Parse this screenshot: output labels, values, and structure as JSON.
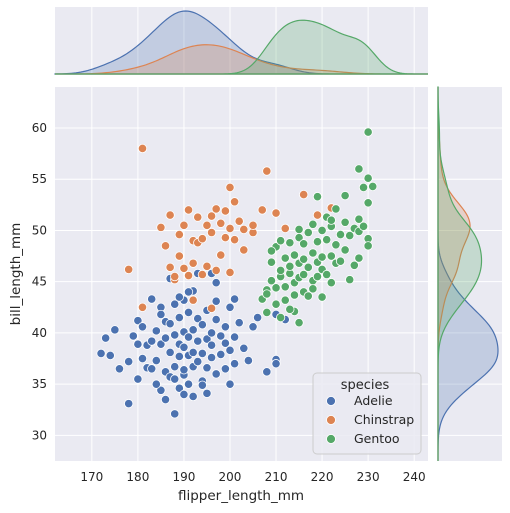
{
  "chart_data": {
    "type": "scatter",
    "xlabel": "flipper_length_mm",
    "ylabel": "bill_length_mm",
    "xlim": [
      162,
      243
    ],
    "ylim": [
      27.5,
      64
    ],
    "xticks": [
      170,
      180,
      190,
      200,
      210,
      220,
      230,
      240
    ],
    "yticks": [
      30,
      35,
      40,
      45,
      50,
      55,
      60
    ],
    "grid": true,
    "legend": {
      "title": "species",
      "position": "lower-right"
    },
    "series": [
      {
        "name": "Adelie",
        "color": "#4c72b0",
        "points": [
          [
            172,
            38
          ],
          [
            173,
            39.5
          ],
          [
            175,
            40.3
          ],
          [
            174,
            37.8
          ],
          [
            176,
            36.5
          ],
          [
            178,
            33.1
          ],
          [
            178,
            37.2
          ],
          [
            179,
            39.7
          ],
          [
            180,
            41.2
          ],
          [
            180,
            35.5
          ],
          [
            181,
            37.5
          ],
          [
            181,
            40.6
          ],
          [
            182,
            36.6
          ],
          [
            182,
            38.8
          ],
          [
            183,
            39.2
          ],
          [
            183,
            36.5
          ],
          [
            184,
            40.2
          ],
          [
            184,
            37.3
          ],
          [
            185,
            38.9
          ],
          [
            185,
            34.4
          ],
          [
            185,
            42.5
          ],
          [
            186,
            36.2
          ],
          [
            186,
            39.5
          ],
          [
            186,
            41.1
          ],
          [
            187,
            35.7
          ],
          [
            187,
            38.1
          ],
          [
            187,
            40.9
          ],
          [
            188,
            36.7
          ],
          [
            188,
            39.8
          ],
          [
            188,
            42.8
          ],
          [
            189,
            34.6
          ],
          [
            189,
            37.7
          ],
          [
            189,
            38.9
          ],
          [
            189,
            41.5
          ],
          [
            190,
            35.9
          ],
          [
            190,
            38.6
          ],
          [
            190,
            40.1
          ],
          [
            190,
            43.2
          ],
          [
            190,
            36.4
          ],
          [
            191,
            37.8
          ],
          [
            191,
            39.6
          ],
          [
            191,
            42.0
          ],
          [
            191,
            35.0
          ],
          [
            192,
            38.1
          ],
          [
            192,
            40.3
          ],
          [
            192,
            36.7
          ],
          [
            192,
            44.1
          ],
          [
            193,
            37.2
          ],
          [
            193,
            39.2
          ],
          [
            193,
            41.4
          ],
          [
            194,
            35.3
          ],
          [
            194,
            38.0
          ],
          [
            194,
            40.8
          ],
          [
            195,
            36.6
          ],
          [
            195,
            39.4
          ],
          [
            195,
            42.2
          ],
          [
            195,
            34.1
          ],
          [
            196,
            37.6
          ],
          [
            196,
            40.0
          ],
          [
            196,
            38.8
          ],
          [
            197,
            36.0
          ],
          [
            197,
            41.3
          ],
          [
            197,
            43.1
          ],
          [
            198,
            37.9
          ],
          [
            198,
            39.7
          ],
          [
            199,
            36.5
          ],
          [
            199,
            40.6
          ],
          [
            200,
            38.3
          ],
          [
            200,
            42.5
          ],
          [
            201,
            37.0
          ],
          [
            201,
            39.6
          ],
          [
            202,
            41.0
          ],
          [
            203,
            38.5
          ],
          [
            205,
            40.6
          ],
          [
            206,
            41.5
          ],
          [
            208,
            36.2
          ],
          [
            210,
            37.4
          ],
          [
            210,
            41.8
          ],
          [
            188,
            32.1
          ],
          [
            190,
            34.0
          ],
          [
            186,
            33.5
          ],
          [
            184,
            35.0
          ],
          [
            192,
            33.8
          ],
          [
            194,
            34.9
          ],
          [
            188,
            35.5
          ],
          [
            183,
            43.3
          ],
          [
            180,
            38.9
          ],
          [
            187,
            45.3
          ],
          [
            193,
            45.8
          ],
          [
            196,
            45.8
          ],
          [
            185,
            41.8
          ],
          [
            189,
            43.5
          ],
          [
            191,
            44.0
          ],
          [
            197,
            44.9
          ],
          [
            199,
            39.0
          ],
          [
            204,
            37.3
          ],
          [
            210,
            37.0
          ],
          [
            212,
            41.3
          ],
          [
            200,
            35.0
          ],
          [
            201,
            43.3
          ]
        ]
      },
      {
        "name": "Chinstrap",
        "color": "#dd8452",
        "points": [
          [
            178,
            46.2
          ],
          [
            181,
            58.0
          ],
          [
            181,
            42.5
          ],
          [
            185,
            50.3
          ],
          [
            186,
            48.5
          ],
          [
            187,
            46.4
          ],
          [
            187,
            51.5
          ],
          [
            188,
            45.2
          ],
          [
            189,
            47.5
          ],
          [
            189,
            49.6
          ],
          [
            190,
            46.3
          ],
          [
            190,
            50.5
          ],
          [
            191,
            45.6
          ],
          [
            191,
            52.0
          ],
          [
            192,
            49.0
          ],
          [
            192,
            46.8
          ],
          [
            193,
            48.8
          ],
          [
            193,
            51.3
          ],
          [
            194,
            49.2
          ],
          [
            194,
            45.7
          ],
          [
            195,
            50.5
          ],
          [
            195,
            46.5
          ],
          [
            196,
            51.4
          ],
          [
            196,
            49.8
          ],
          [
            197,
            52.1
          ],
          [
            197,
            46.1
          ],
          [
            198,
            50.7
          ],
          [
            198,
            47.6
          ],
          [
            199,
            49.3
          ],
          [
            199,
            51.9
          ],
          [
            200,
            45.9
          ],
          [
            200,
            50.2
          ],
          [
            201,
            49.1
          ],
          [
            201,
            52.8
          ],
          [
            202,
            50.9
          ],
          [
            203,
            50.1
          ],
          [
            203,
            48.1
          ],
          [
            205,
            49.8
          ],
          [
            205,
            50.5
          ],
          [
            207,
            52.0
          ],
          [
            208,
            55.8
          ],
          [
            210,
            51.7
          ],
          [
            212,
            50.2
          ],
          [
            216,
            53.5
          ],
          [
            219,
            51.5
          ],
          [
            222,
            52.2
          ],
          [
            188,
            45.5
          ],
          [
            192,
            43.2
          ],
          [
            196,
            42.4
          ],
          [
            200,
            54.2
          ]
        ]
      },
      {
        "name": "Gentoo",
        "color": "#55a868",
        "points": [
          [
            207,
            43.3
          ],
          [
            208,
            44.2
          ],
          [
            208,
            42.0
          ],
          [
            209,
            45.1
          ],
          [
            209,
            46.9
          ],
          [
            210,
            44.4
          ],
          [
            210,
            48.4
          ],
          [
            210,
            42.8
          ],
          [
            211,
            45.5
          ],
          [
            211,
            49.0
          ],
          [
            211,
            46.1
          ],
          [
            212,
            44.5
          ],
          [
            212,
            47.3
          ],
          [
            212,
            43.2
          ],
          [
            213,
            45.8
          ],
          [
            213,
            48.8
          ],
          [
            213,
            46.5
          ],
          [
            214,
            44.9
          ],
          [
            214,
            47.6
          ],
          [
            214,
            42.1
          ],
          [
            215,
            45.4
          ],
          [
            215,
            49.3
          ],
          [
            215,
            46.8
          ],
          [
            215,
            50.1
          ],
          [
            216,
            44.0
          ],
          [
            216,
            47.2
          ],
          [
            216,
            48.7
          ],
          [
            216,
            45.7
          ],
          [
            217,
            43.6
          ],
          [
            217,
            46.4
          ],
          [
            217,
            49.8
          ],
          [
            218,
            45.1
          ],
          [
            218,
            47.8
          ],
          [
            218,
            50.6
          ],
          [
            218,
            44.3
          ],
          [
            219,
            46.9
          ],
          [
            219,
            48.9
          ],
          [
            219,
            45.5
          ],
          [
            220,
            43.5
          ],
          [
            220,
            47.4
          ],
          [
            220,
            50.0
          ],
          [
            220,
            46.2
          ],
          [
            221,
            49.1
          ],
          [
            221,
            45.7
          ],
          [
            221,
            51.3
          ],
          [
            222,
            47.5
          ],
          [
            222,
            44.9
          ],
          [
            222,
            50.4
          ],
          [
            223,
            46.8
          ],
          [
            223,
            48.6
          ],
          [
            223,
            52.1
          ],
          [
            224,
            47.0
          ],
          [
            224,
            49.6
          ],
          [
            225,
            48.1
          ],
          [
            225,
            50.8
          ],
          [
            226,
            49.5
          ],
          [
            226,
            45.2
          ],
          [
            227,
            50.2
          ],
          [
            227,
            46.6
          ],
          [
            228,
            49.9
          ],
          [
            228,
            51.1
          ],
          [
            228,
            47.3
          ],
          [
            229,
            50.4
          ],
          [
            230,
            49.2
          ],
          [
            230,
            52.7
          ],
          [
            230,
            48.5
          ],
          [
            229,
            54.2
          ],
          [
            230,
            55.1
          ],
          [
            230,
            59.6
          ],
          [
            228,
            56.0
          ],
          [
            231,
            54.3
          ],
          [
            225,
            53.4
          ],
          [
            222,
            51.0
          ],
          [
            219,
            53.3
          ],
          [
            215,
            41.0
          ],
          [
            213,
            42.3
          ],
          [
            211,
            41.5
          ],
          [
            208,
            43.8
          ],
          [
            209,
            48.0
          ],
          [
            214,
            43.7
          ]
        ]
      }
    ]
  }
}
